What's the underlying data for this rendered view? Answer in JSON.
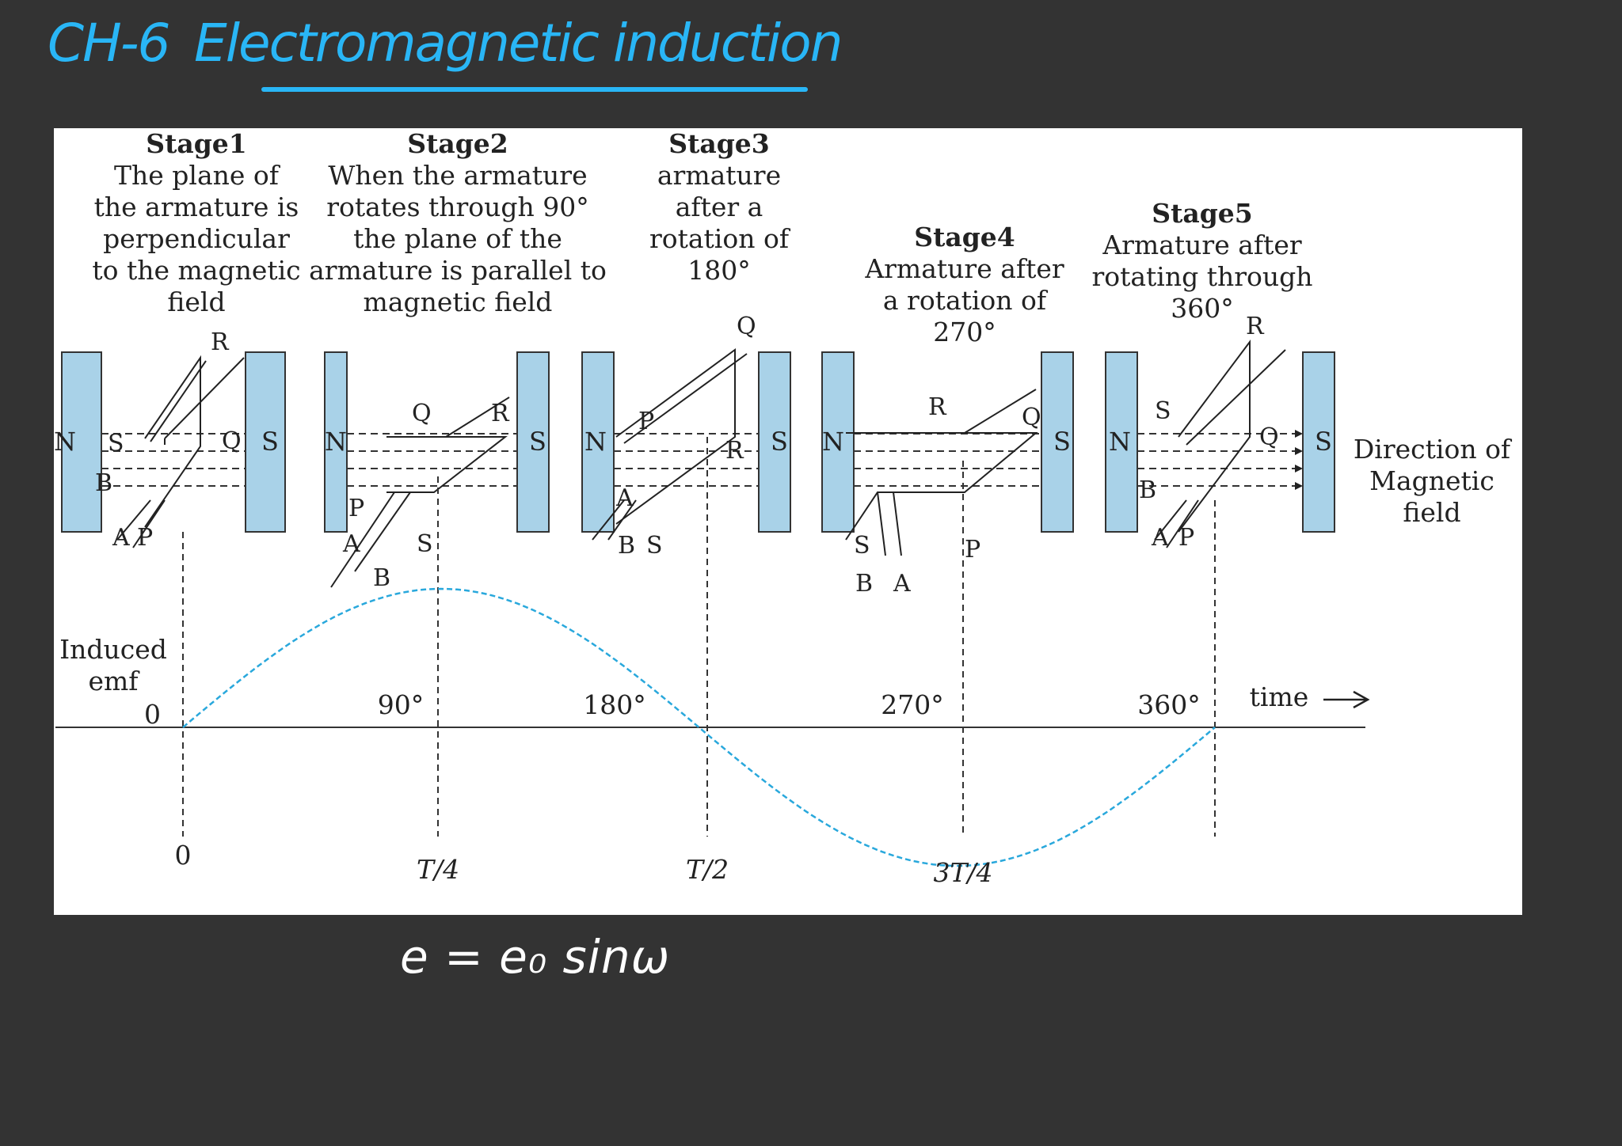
{
  "heading": {
    "chapter": "CH-6",
    "title": "Electromagnetic induction"
  },
  "stages": [
    {
      "label": "Stage1",
      "description": "The plane of\nthe armature is\nperpendicular\nto the magnetic\nfield"
    },
    {
      "label": "Stage2",
      "description": "When the armature\nrotates through 90°\nthe plane of the\narmature is parallel to\nmagnetic field"
    },
    {
      "label": "Stage3",
      "description": "armature\nafter a\nrotation of\n180°"
    },
    {
      "label": "Stage4",
      "description": "Armature after\na rotation of\n270°"
    },
    {
      "label": "Stage5",
      "description": "Armature after\nrotating through\n360°"
    }
  ],
  "poles": {
    "north": "N",
    "south": "S"
  },
  "coil_labels": {
    "stage1": [
      "R",
      "S",
      "Q",
      "B",
      "A",
      "P"
    ],
    "stage2": [
      "Q",
      "R",
      "P",
      "A",
      "B",
      "S"
    ],
    "stage3": [
      "Q",
      "P",
      "R",
      "A",
      "B",
      "S"
    ],
    "stage4": [
      "R",
      "Q",
      "S",
      "B",
      "A",
      "P"
    ],
    "stage5": [
      "R",
      "S",
      "Q",
      "B",
      "A",
      "P"
    ]
  },
  "field_direction_label": "Direction of\nMagnetic\nfield",
  "graph": {
    "ylabel": "Induced\nemf",
    "zero_label": "0",
    "angle_labels": [
      "90°",
      "180°",
      "270°",
      "360°"
    ],
    "time_label": "time",
    "time_ticks": [
      "0",
      "T/4",
      "T/2",
      "3T/4"
    ]
  },
  "colors": {
    "background": "#333333",
    "panel": "#ffffff",
    "magnet": "#a9d2e8",
    "curve": "#29a8dc",
    "heading": "#29b6f6",
    "ink": "#222222"
  },
  "formula": "e = e₀ sinω"
}
